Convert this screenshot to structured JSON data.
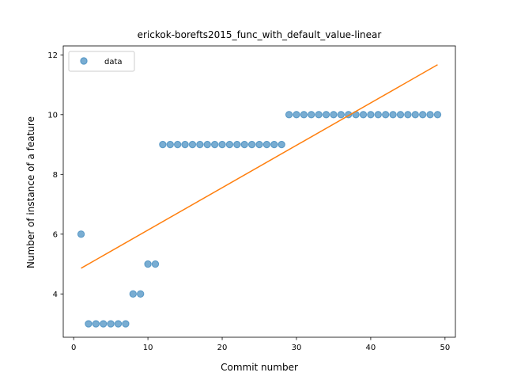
{
  "chart_data": {
    "type": "scatter",
    "title": "erickok-borefts2015_func_with_default_value-linear",
    "xlabel": "Commit number",
    "ylabel": "Number of instance of a feature",
    "xlim": [
      -1.4,
      51.4
    ],
    "ylim": [
      2.55,
      12.3
    ],
    "xticks": [
      0,
      10,
      20,
      30,
      40,
      50
    ],
    "yticks": [
      4,
      6,
      8,
      10,
      12
    ],
    "legend": {
      "placement": "top-left",
      "entries": [
        "data"
      ]
    },
    "grid": false,
    "series": [
      {
        "name": "data",
        "kind": "scatter",
        "color": "#1f77b4",
        "x": [
          1,
          2,
          3,
          4,
          5,
          6,
          7,
          8,
          9,
          10,
          11,
          12,
          13,
          14,
          15,
          16,
          17,
          18,
          19,
          20,
          21,
          22,
          23,
          24,
          25,
          26,
          27,
          28,
          29,
          30,
          31,
          32,
          33,
          34,
          35,
          36,
          37,
          38,
          39,
          40,
          41,
          42,
          43,
          44,
          45,
          46,
          47,
          48,
          49
        ],
        "y": [
          6,
          3,
          3,
          3,
          3,
          3,
          3,
          4,
          4,
          5,
          5,
          9,
          9,
          9,
          9,
          9,
          9,
          9,
          9,
          9,
          9,
          9,
          9,
          9,
          9,
          9,
          9,
          9,
          10,
          10,
          10,
          10,
          10,
          10,
          10,
          10,
          10,
          10,
          10,
          10,
          10,
          10,
          10,
          10,
          10,
          10,
          10,
          10,
          10
        ]
      },
      {
        "kind": "line",
        "color": "#ff7f0e",
        "x": [
          1,
          49
        ],
        "y": [
          4.86,
          11.67
        ]
      }
    ]
  }
}
